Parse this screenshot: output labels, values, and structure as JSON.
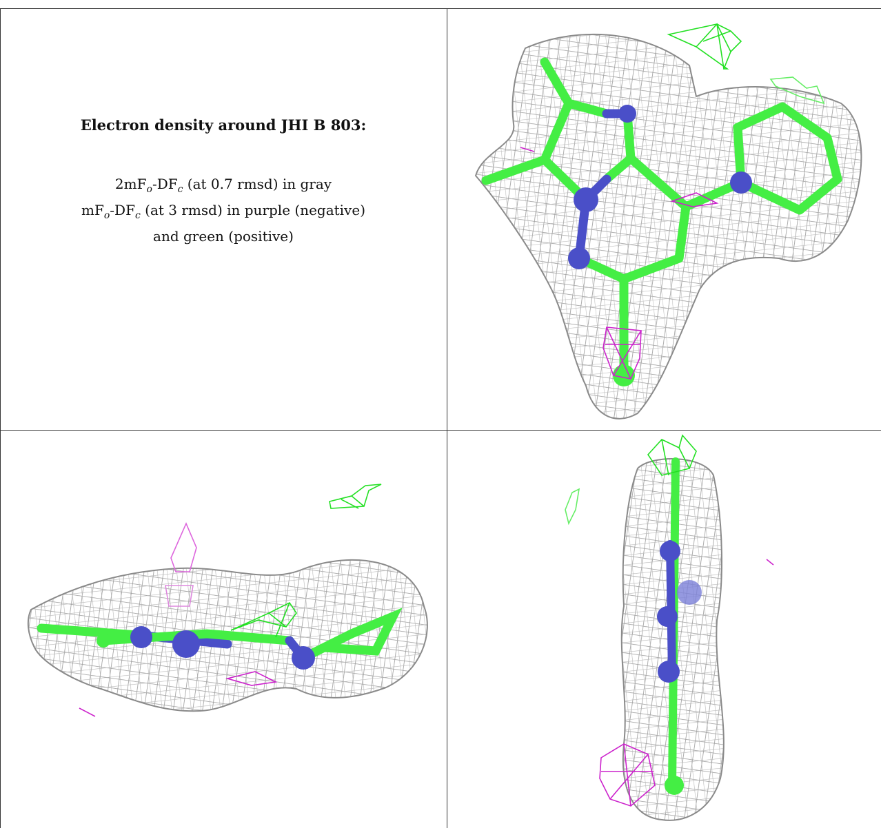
{
  "panel_text": {
    "title": "Electron density around JHI B 803:",
    "legend_line1": {
      "pre": "2mF",
      "sub1": "o",
      "mid": "-DF",
      "sub2": "c",
      "post": " (at 0.7 rmsd) in gray"
    },
    "legend_line2": {
      "pre": "mF",
      "sub1": "o",
      "mid": "-DF",
      "sub2": "c",
      "post": " (at 3 rmsd) in purple (negative)"
    },
    "legend_line3": "and green (positive)"
  },
  "colors": {
    "mesh_2fofc": "#9a9a9a",
    "mesh_positive": "#22e022",
    "mesh_negative": "#cc22cc",
    "carbon_stick": "#44ee44",
    "nitrogen_stick": "#4a4fc8",
    "border": "#333333"
  },
  "views": [
    {
      "view": "top-right",
      "orientation": "face-on"
    },
    {
      "view": "bottom-left",
      "orientation": "edge-on horizontal"
    },
    {
      "view": "bottom-right",
      "orientation": "edge-on vertical"
    }
  ]
}
